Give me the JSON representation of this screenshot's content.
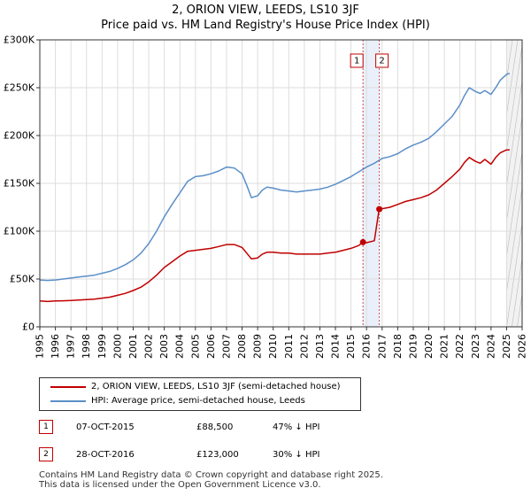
{
  "colors": {
    "red": "#c00000",
    "blue": "#5b8fc8",
    "grid": "#dddddd",
    "band": "#dce6f5"
  },
  "chart_data": {
    "type": "line",
    "title": "2, ORION VIEW, LEEDS, LS10 3JF",
    "subtitle": "Price paid vs. HM Land Registry's House Price Index (HPI)",
    "xlim": [
      1995,
      2026
    ],
    "ylim": [
      0,
      300000
    ],
    "x_ticks": [
      "1995",
      "1996",
      "1997",
      "1998",
      "1999",
      "2000",
      "2001",
      "2002",
      "2003",
      "2004",
      "2005",
      "2006",
      "2007",
      "2008",
      "2009",
      "2010",
      "2011",
      "2012",
      "2013",
      "2014",
      "2015",
      "2016",
      "2017",
      "2018",
      "2019",
      "2020",
      "2021",
      "2022",
      "2023",
      "2024",
      "2025",
      "2026"
    ],
    "y_ticks": [
      {
        "value": 0,
        "label": "£0"
      },
      {
        "value": 50000,
        "label": "£50K"
      },
      {
        "value": 100000,
        "label": "£100K"
      },
      {
        "value": 150000,
        "label": "£150K"
      },
      {
        "value": 200000,
        "label": "£200K"
      },
      {
        "value": 250000,
        "label": "£250K"
      },
      {
        "value": 300000,
        "label": "£300K"
      }
    ],
    "series": [
      {
        "name": "HPI: Average price, semi-detached house, Leeds",
        "color": "#5b8fc8",
        "x": [
          1995,
          1995.5,
          1996,
          1996.5,
          1997,
          1997.5,
          1998,
          1998.5,
          1999,
          1999.5,
          2000,
          2000.5,
          2001,
          2001.5,
          2002,
          2002.5,
          2003,
          2003.5,
          2004,
          2004.5,
          2005,
          2005.5,
          2006,
          2006.5,
          2007,
          2007.5,
          2008,
          2008.3,
          2008.6,
          2009,
          2009.3,
          2009.6,
          2010,
          2010.5,
          2011,
          2011.5,
          2012,
          2012.5,
          2013,
          2013.5,
          2014,
          2014.5,
          2015,
          2015.5,
          2016,
          2016.5,
          2017,
          2017.5,
          2018,
          2018.5,
          2019,
          2019.5,
          2020,
          2020.5,
          2021,
          2021.5,
          2022,
          2022.3,
          2022.6,
          2023,
          2023.3,
          2023.6,
          2024,
          2024.3,
          2024.6,
          2025,
          2025.2
        ],
        "values": [
          49000,
          48500,
          49000,
          50000,
          51000,
          52000,
          53000,
          54000,
          56000,
          58000,
          61000,
          65000,
          70000,
          77000,
          87000,
          100000,
          115000,
          128000,
          140000,
          152000,
          157000,
          158000,
          160000,
          163000,
          167000,
          166000,
          160000,
          148000,
          135000,
          137000,
          143000,
          146000,
          145000,
          143000,
          142000,
          141000,
          142000,
          143000,
          144000,
          146000,
          149000,
          153000,
          157000,
          162000,
          167000,
          171000,
          176000,
          178000,
          181000,
          186000,
          190000,
          193000,
          197000,
          204000,
          212000,
          220000,
          232000,
          242000,
          250000,
          246000,
          244000,
          247000,
          243000,
          250000,
          258000,
          264000,
          265000
        ]
      },
      {
        "name": "2, ORION VIEW, LEEDS, LS10 3JF (semi-detached house)",
        "color": "#c00000",
        "x": [
          1995,
          1995.5,
          1996,
          1996.5,
          1997,
          1997.5,
          1998,
          1998.5,
          1999,
          1999.5,
          2000,
          2000.5,
          2001,
          2001.5,
          2002,
          2002.5,
          2003,
          2003.5,
          2004,
          2004.5,
          2005,
          2005.5,
          2006,
          2006.5,
          2007,
          2007.5,
          2008,
          2008.3,
          2008.6,
          2009,
          2009.3,
          2009.6,
          2010,
          2010.5,
          2011,
          2011.5,
          2012,
          2012.5,
          2013,
          2013.5,
          2014,
          2014.5,
          2015,
          2015.5,
          2015.77,
          2016,
          2016.5,
          2016.81,
          2017,
          2017.5,
          2018,
          2018.5,
          2019,
          2019.5,
          2020,
          2020.5,
          2021,
          2021.5,
          2022,
          2022.3,
          2022.6,
          2023,
          2023.3,
          2023.6,
          2024,
          2024.3,
          2024.6,
          2025,
          2025.2
        ],
        "values": [
          27000,
          26500,
          27000,
          27200,
          27500,
          28000,
          28500,
          29000,
          30000,
          31000,
          33000,
          35000,
          38000,
          41500,
          47000,
          54000,
          62000,
          68000,
          74000,
          79000,
          80000,
          81000,
          82000,
          84000,
          86000,
          86000,
          83000,
          77000,
          71000,
          72000,
          76000,
          78000,
          78000,
          77000,
          77000,
          76000,
          76000,
          76000,
          76000,
          77000,
          78000,
          80000,
          82000,
          85000,
          88500,
          88000,
          90000,
          123000,
          123500,
          125000,
          128000,
          131000,
          133000,
          135000,
          138000,
          143000,
          150000,
          157000,
          165000,
          172000,
          177000,
          173000,
          171000,
          175000,
          170000,
          177000,
          182000,
          185000,
          185000
        ]
      }
    ],
    "annotations": [
      {
        "label": "1",
        "x": 2015.77,
        "y": 88500
      },
      {
        "label": "2",
        "x": 2016.82,
        "y": 123000
      }
    ]
  },
  "legend": {
    "property": "2, ORION VIEW, LEEDS, LS10 3JF (semi-detached house)",
    "hpi": "HPI: Average price, semi-detached house, Leeds"
  },
  "transactions": [
    {
      "num": "1",
      "date": "07-OCT-2015",
      "price": "£88,500",
      "hpi": "47% ↓ HPI"
    },
    {
      "num": "2",
      "date": "28-OCT-2016",
      "price": "£123,000",
      "hpi": "30% ↓ HPI"
    }
  ],
  "footer": {
    "line1": "Contains HM Land Registry data © Crown copyright and database right 2025.",
    "line2": "This data is licensed under the Open Government Licence v3.0."
  }
}
